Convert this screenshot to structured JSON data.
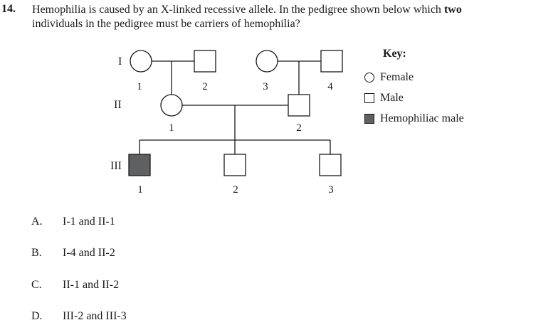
{
  "question": {
    "number": "14.",
    "line1_start": "Hemophilia is caused by an X-linked recessive allele.  In the pedigree shown below which ",
    "line1_bold": "two",
    "line2": "individuals in the pedigree must be carriers of hemophilia?"
  },
  "pedigree": {
    "generation_labels": [
      "I",
      "II",
      "III"
    ],
    "gen1_numbers": [
      "1",
      "2",
      "3",
      "4"
    ],
    "gen2_numbers": [
      "1",
      "2"
    ],
    "gen3_numbers": [
      "1",
      "2",
      "3"
    ],
    "colors": {
      "affected_fill": "#5f6061",
      "line": "#1a1a1a"
    }
  },
  "key": {
    "title": "Key:",
    "items": [
      {
        "label": "Female",
        "symbol": "circle-icon"
      },
      {
        "label": "Male",
        "symbol": "square-icon"
      },
      {
        "label": "Hemophiliac male",
        "symbol": "filled-square-icon"
      }
    ]
  },
  "options": [
    {
      "letter": "A.",
      "text": "I-1 and II-1"
    },
    {
      "letter": "B.",
      "text": "I-4 and II-2"
    },
    {
      "letter": "C.",
      "text": "II-1 and II-2"
    },
    {
      "letter": "D.",
      "text": "III-2 and III-3"
    }
  ]
}
